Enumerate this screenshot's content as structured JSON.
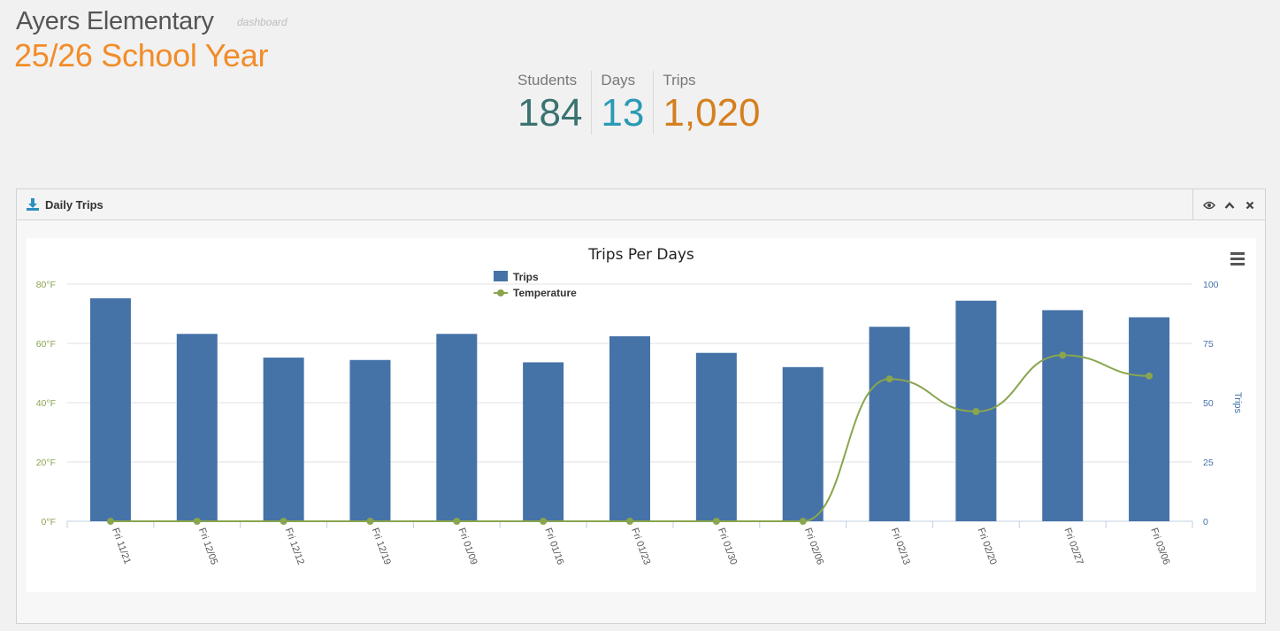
{
  "header": {
    "school_name": "Ayers Elementary",
    "dashboard_label": "dashboard",
    "year_label": "25/26 School Year"
  },
  "stats": [
    {
      "label": "Students",
      "value": "184"
    },
    {
      "label": "Days",
      "value": "13"
    },
    {
      "label": "Trips",
      "value": "1,020"
    }
  ],
  "panel": {
    "title": "Daily Trips",
    "title_icon": "download-icon",
    "tools": [
      "eye-icon",
      "chevron-up-icon",
      "close-icon"
    ]
  },
  "chart_data": {
    "type": "bar",
    "title": "Trips Per Days",
    "categories": [
      "Fri 11/21",
      "Fri 12/05",
      "Fri 12/12",
      "Fri 12/19",
      "Fri 01/09",
      "Fri 01/16",
      "Fri 01/23",
      "Fri 01/30",
      "Fri 02/06",
      "Fri 02/13",
      "Fri 02/20",
      "Fri 02/27",
      "Fri 03/06"
    ],
    "series": [
      {
        "name": "Trips",
        "type": "bar",
        "axis": "right",
        "color": "#4572a7",
        "values": [
          94,
          79,
          69,
          68,
          79,
          67,
          78,
          71,
          65,
          82,
          93,
          89,
          86
        ]
      },
      {
        "name": "Temperature",
        "type": "spline",
        "axis": "left",
        "color": "#89a54e",
        "values": [
          0,
          0,
          0,
          0,
          0,
          0,
          0,
          0,
          0,
          48,
          37,
          56,
          49
        ]
      }
    ],
    "left_axis": {
      "ticks": [
        "0°F",
        "20°F",
        "40°F",
        "60°F",
        "80°F"
      ],
      "min": 0,
      "max": 80,
      "color": "#89a54e"
    },
    "right_axis": {
      "label": "Trips",
      "ticks": [
        "0",
        "25",
        "50",
        "75",
        "100"
      ],
      "min": 0,
      "max": 100,
      "color": "#4572a7"
    },
    "legend_position": "top-center",
    "grid": true
  }
}
